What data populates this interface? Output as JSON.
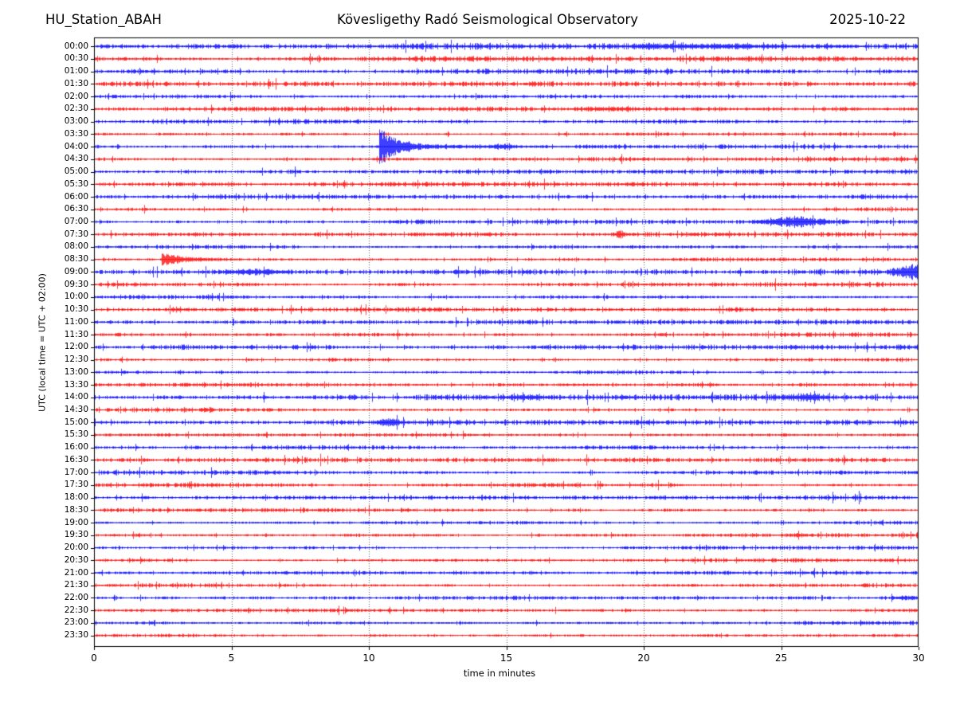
{
  "chart_data": {
    "type": "helicorder",
    "station": "HU_Station_ABAH",
    "title": "Kövesligethy Radó Seismological Observatory",
    "date": "2025-10-22",
    "xlabel": "time in minutes",
    "ylabel": "UTC (local time = UTC + 02:00)",
    "x_ticks": [
      0,
      5,
      10,
      15,
      20,
      25,
      30
    ],
    "x_range": [
      0,
      30
    ],
    "minutes_per_row": 30,
    "grid_minutes": [
      5,
      10,
      15,
      20,
      25
    ],
    "colors": {
      "trace_blue": "#0000ff",
      "trace_red": "#ff0000",
      "grid": "#555555",
      "frame": "#000000",
      "background": "#ffffff"
    },
    "rows": [
      {
        "label": "00:00",
        "color": "#0000ff",
        "amp": 1.35
      },
      {
        "label": "00:30",
        "color": "#ff0000",
        "amp": 1.15
      },
      {
        "label": "01:00",
        "color": "#0000ff",
        "amp": 1.1
      },
      {
        "label": "01:30",
        "color": "#ff0000",
        "amp": 1.05
      },
      {
        "label": "02:00",
        "color": "#0000ff",
        "amp": 1.05
      },
      {
        "label": "02:30",
        "color": "#ff0000",
        "amp": 1.0
      },
      {
        "label": "03:00",
        "color": "#0000ff",
        "amp": 1.05
      },
      {
        "label": "03:30",
        "color": "#ff0000",
        "amp": 0.95
      },
      {
        "label": "04:00",
        "color": "#0000ff",
        "amp": 1.0
      },
      {
        "label": "04:30",
        "color": "#ff0000",
        "amp": 1.0
      },
      {
        "label": "05:00",
        "color": "#0000ff",
        "amp": 1.0
      },
      {
        "label": "05:30",
        "color": "#ff0000",
        "amp": 0.95
      },
      {
        "label": "06:00",
        "color": "#0000ff",
        "amp": 1.05
      },
      {
        "label": "06:30",
        "color": "#ff0000",
        "amp": 1.0
      },
      {
        "label": "07:00",
        "color": "#0000ff",
        "amp": 1.05
      },
      {
        "label": "07:30",
        "color": "#ff0000",
        "amp": 1.0
      },
      {
        "label": "08:00",
        "color": "#0000ff",
        "amp": 1.0
      },
      {
        "label": "08:30",
        "color": "#ff0000",
        "amp": 1.05
      },
      {
        "label": "09:00",
        "color": "#0000ff",
        "amp": 1.15
      },
      {
        "label": "09:30",
        "color": "#ff0000",
        "amp": 1.0
      },
      {
        "label": "10:00",
        "color": "#0000ff",
        "amp": 1.05
      },
      {
        "label": "10:30",
        "color": "#ff0000",
        "amp": 1.1
      },
      {
        "label": "11:00",
        "color": "#0000ff",
        "amp": 1.0
      },
      {
        "label": "11:30",
        "color": "#ff0000",
        "amp": 0.95
      },
      {
        "label": "12:00",
        "color": "#0000ff",
        "amp": 1.05
      },
      {
        "label": "12:30",
        "color": "#ff0000",
        "amp": 1.0
      },
      {
        "label": "13:00",
        "color": "#0000ff",
        "amp": 1.0
      },
      {
        "label": "13:30",
        "color": "#ff0000",
        "amp": 0.95
      },
      {
        "label": "14:00",
        "color": "#0000ff",
        "amp": 1.3
      },
      {
        "label": "14:30",
        "color": "#ff0000",
        "amp": 1.1
      },
      {
        "label": "15:00",
        "color": "#0000ff",
        "amp": 1.1
      },
      {
        "label": "15:30",
        "color": "#ff0000",
        "amp": 1.0
      },
      {
        "label": "16:00",
        "color": "#0000ff",
        "amp": 1.0
      },
      {
        "label": "16:30",
        "color": "#ff0000",
        "amp": 1.0
      },
      {
        "label": "17:00",
        "color": "#0000ff",
        "amp": 0.95
      },
      {
        "label": "17:30",
        "color": "#ff0000",
        "amp": 1.0
      },
      {
        "label": "18:00",
        "color": "#0000ff",
        "amp": 1.0
      },
      {
        "label": "18:30",
        "color": "#ff0000",
        "amp": 0.95
      },
      {
        "label": "19:00",
        "color": "#0000ff",
        "amp": 0.9
      },
      {
        "label": "19:30",
        "color": "#ff0000",
        "amp": 0.9
      },
      {
        "label": "20:00",
        "color": "#0000ff",
        "amp": 0.85
      },
      {
        "label": "20:30",
        "color": "#ff0000",
        "amp": 0.85
      },
      {
        "label": "21:00",
        "color": "#0000ff",
        "amp": 0.85
      },
      {
        "label": "21:30",
        "color": "#ff0000",
        "amp": 0.85
      },
      {
        "label": "22:00",
        "color": "#0000ff",
        "amp": 0.9
      },
      {
        "label": "22:30",
        "color": "#ff0000",
        "amp": 0.85
      },
      {
        "label": "23:00",
        "color": "#0000ff",
        "amp": 0.9
      },
      {
        "label": "23:30",
        "color": "#ff0000",
        "amp": 0.9
      }
    ],
    "events": [
      {
        "row": "00:00",
        "shape": "gauss",
        "center": 20.3,
        "sigma": 0.7,
        "amp": 1.4
      },
      {
        "row": "00:00",
        "shape": "gauss",
        "center": 22.9,
        "sigma": 1.5,
        "amp": 1.5
      },
      {
        "row": "00:00",
        "shape": "gauss",
        "center": 26.9,
        "sigma": 0.6,
        "amp": 1.0
      },
      {
        "row": "02:30",
        "shape": "gauss",
        "center": 18.6,
        "sigma": 0.8,
        "amp": 1.1
      },
      {
        "row": "04:00",
        "shape": "quake",
        "onset": 10.35,
        "amp": 19.0,
        "tau": 0.45,
        "coda_amp": 3.2,
        "coda_tau": 2.8
      },
      {
        "row": "04:00",
        "shape": "gauss",
        "center": 14.85,
        "sigma": 0.3,
        "amp": 2.2
      },
      {
        "row": "07:00",
        "shape": "gauss",
        "center": 25.5,
        "sigma": 0.8,
        "amp": 4.2
      },
      {
        "row": "07:30",
        "shape": "gauss",
        "center": 19.1,
        "sigma": 0.12,
        "amp": 3.2
      },
      {
        "row": "08:30",
        "shape": "quake",
        "onset": 2.45,
        "amp": 5.5,
        "tau": 0.7,
        "coda_amp": 1.2,
        "coda_tau": 1.2
      },
      {
        "row": "09:00",
        "shape": "gauss",
        "center": 5.8,
        "sigma": 0.75,
        "amp": 2.0
      },
      {
        "row": "09:00",
        "shape": "gauss",
        "center": 29.75,
        "sigma": 0.4,
        "amp": 6.5
      },
      {
        "row": "14:00",
        "shape": "gauss",
        "center": 15.8,
        "sigma": 0.5,
        "amp": 1.6
      },
      {
        "row": "14:00",
        "shape": "gauss",
        "center": 25.9,
        "sigma": 0.5,
        "amp": 2.2
      },
      {
        "row": "15:00",
        "shape": "gauss",
        "center": 10.75,
        "sigma": 0.3,
        "amp": 2.8
      },
      {
        "row": "22:00",
        "shape": "gauss",
        "center": 29.6,
        "sigma": 0.35,
        "amp": 1.4
      }
    ]
  }
}
